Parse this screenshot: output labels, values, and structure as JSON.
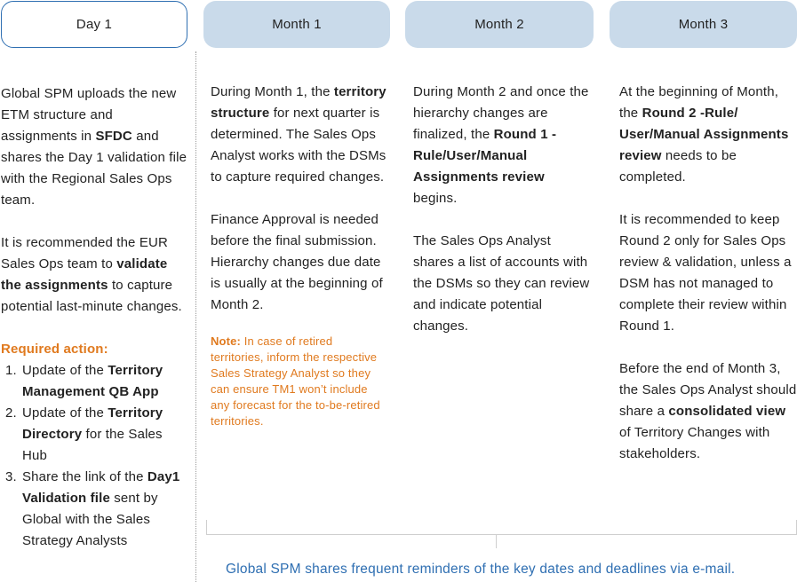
{
  "phases": [
    {
      "label": "Day 1"
    },
    {
      "label": "Month 1"
    },
    {
      "label": "Month 2"
    },
    {
      "label": "Month 3"
    }
  ],
  "day1": {
    "p1": [
      "Global SPM uploads the new ETM structure and assignments in ",
      "SFDC",
      " and shares the Day 1 validation file with the Regional Sales Ops team."
    ],
    "p2": [
      "It is recommended the EUR Sales Ops team to ",
      "validate the assignments",
      " to capture potential last-minute changes."
    ],
    "required_label": "Required action:",
    "actions": [
      {
        "num": "1.",
        "parts": [
          "Update of the ",
          "Territory Management QB App",
          ""
        ]
      },
      {
        "num": "2.",
        "parts": [
          "Update of the ",
          "Territory Directory",
          " for the Sales Hub"
        ]
      },
      {
        "num": "3.",
        "parts": [
          "Share the link of the ",
          "Day1 Validation file",
          " sent by Global with the Sales Strategy Analysts"
        ]
      }
    ]
  },
  "month1": {
    "p1": [
      "During Month 1, the ",
      "territory structure",
      " for next quarter is determined. The Sales Ops Analyst works with the DSMs to capture required changes."
    ],
    "p2": "Finance Approval is needed before the final submission. Hierarchy changes due date is usually at the beginning of Month 2.",
    "note_label": "Note:",
    "note_text": " In case of retired territories, inform the respective Sales Strategy Analyst so they can ensure TM1 won’t include any forecast for the to-be-retired territories."
  },
  "month2": {
    "p1": [
      "During Month 2 and once the hierarchy changes are finalized, the ",
      "Round 1 - Rule/User/Manual Assignments review",
      " begins."
    ],
    "p2": "The Sales Ops Analyst shares a list of accounts with the DSMs so they can review and indicate potential changes."
  },
  "month3": {
    "p1": [
      "At the beginning of Month, the ",
      "Round 2 -Rule/ User/Manual Assignments review",
      " needs to be completed."
    ],
    "p2": "It is recommended to keep Round 2 only for Sales Ops review & validation, unless a DSM has not managed to complete their review within Round 1.",
    "p3": [
      "Before the end of Month 3, the Sales Ops Analyst should share a ",
      "consolidated view",
      " of Territory Changes with stakeholders."
    ]
  },
  "footer": "Global SPM shares frequent reminders of the key dates and deadlines via e-mail."
}
